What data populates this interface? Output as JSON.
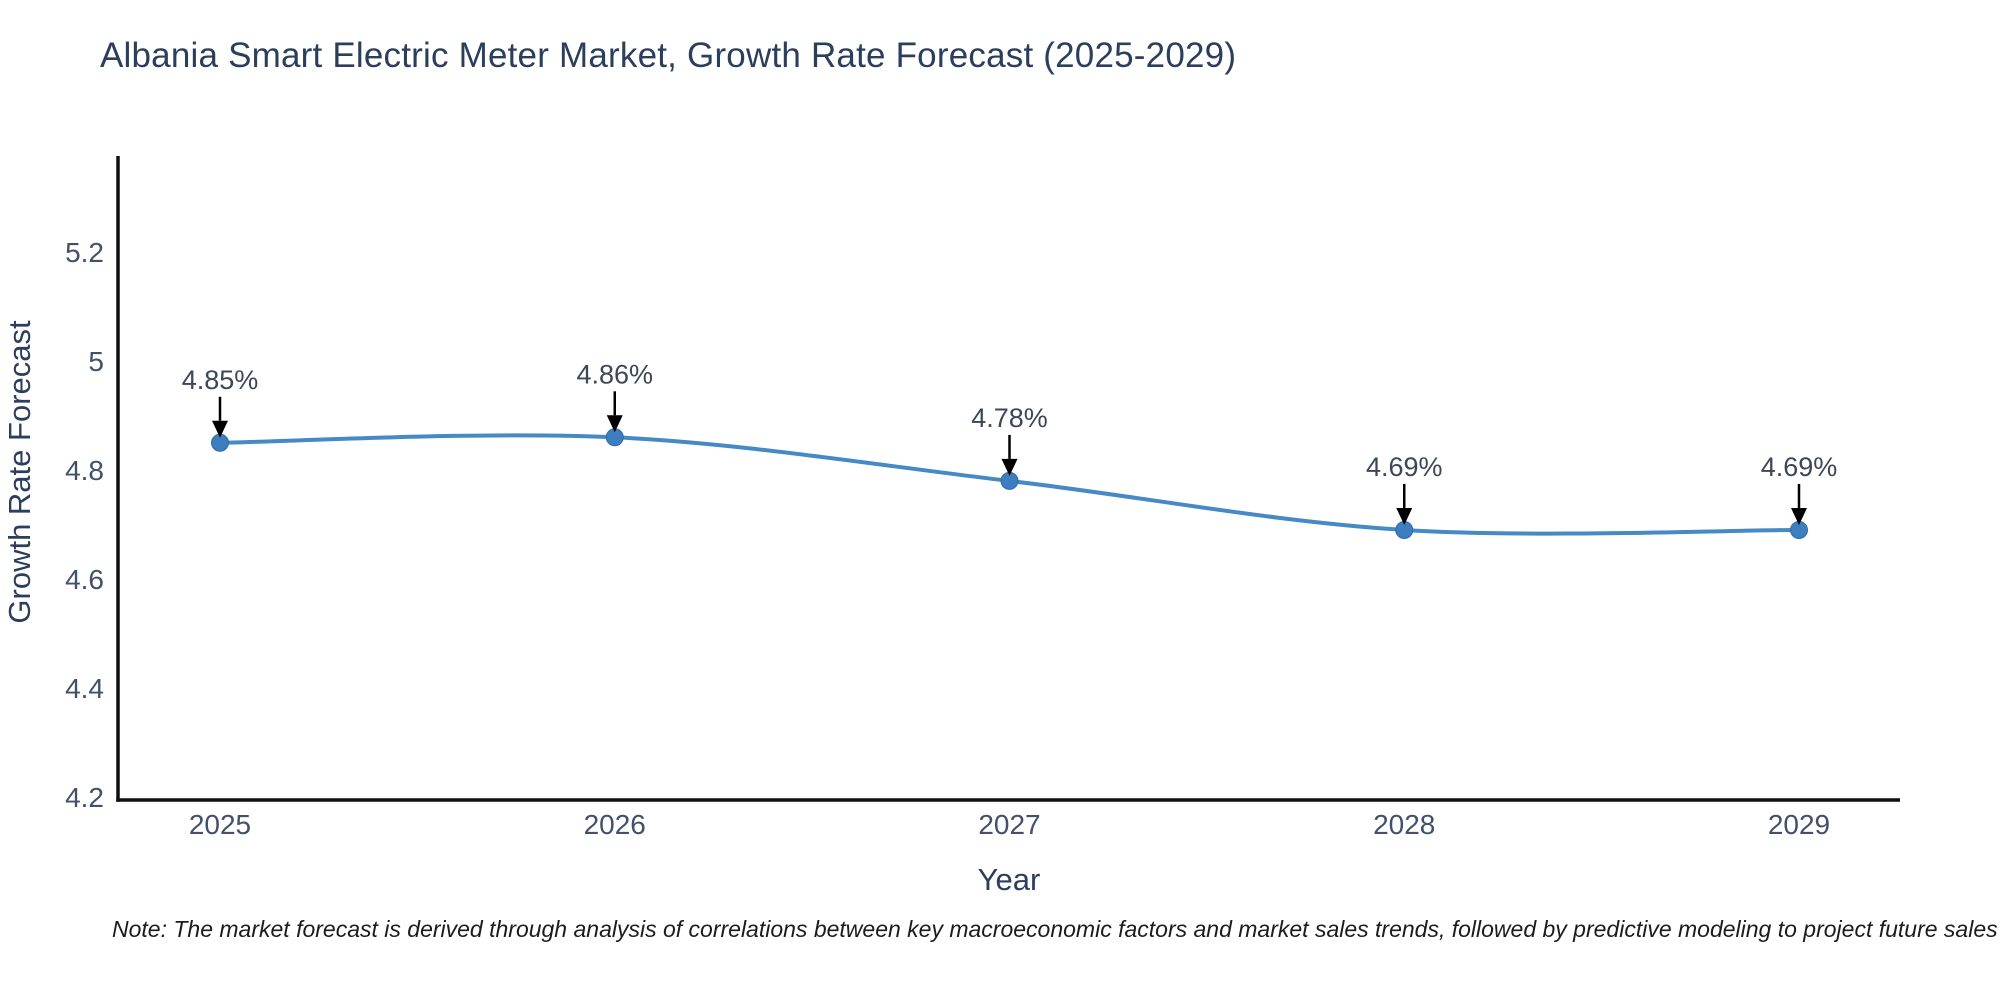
{
  "title": "Albania Smart Electric Meter Market, Growth Rate Forecast (2025-2029)",
  "note": "Note: The market forecast is derived through analysis of correlations between key macroeconomic factors and market sales trends, followed by predictive modeling to project future sales",
  "chart_data": {
    "type": "line",
    "title": "Albania Smart Electric Meter Market, Growth Rate Forecast (2025-2029)",
    "x": [
      2025,
      2026,
      2027,
      2028,
      2029
    ],
    "series": [
      {
        "name": "Growth Rate Forecast",
        "values": [
          4.85,
          4.86,
          4.78,
          4.69,
          4.69
        ]
      }
    ],
    "point_labels": [
      "4.85%",
      "4.86%",
      "4.78%",
      "4.69%",
      "4.69%"
    ],
    "xlabel": "Year",
    "ylabel": "Growth Rate Forecast",
    "xtick_labels": [
      "2025",
      "2026",
      "2027",
      "2028",
      "2029"
    ],
    "ytick_labels": [
      "4.2",
      "4.4",
      "4.6",
      "4.8",
      "5",
      "5.2"
    ],
    "ytick_values": [
      4.2,
      4.4,
      4.6,
      4.8,
      5.0,
      5.2
    ],
    "ylim": [
      4.2,
      5.38
    ],
    "grid": false,
    "legend": "none",
    "line_shape": "spline",
    "annotation_style": "value label with downward arrow to each point",
    "colors": {
      "line": "#4689c5",
      "marker": "#3d7fbe",
      "marker_edge": "#2e6ba8",
      "axis": "#0f0f0f",
      "arrow": "#000000",
      "title_text": "#2b3f5c",
      "axis_title_text": "#2b3f5c",
      "tick_text": "#42506b",
      "annotation_text": "#3c4757",
      "background": "#ffffff"
    }
  }
}
